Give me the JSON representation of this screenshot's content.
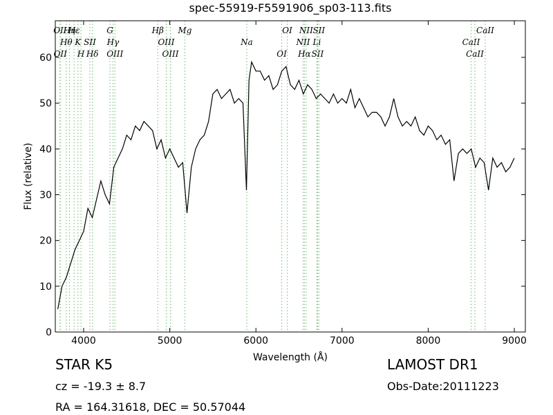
{
  "chart_data": {
    "type": "line",
    "title": "spec-55919-F5591906_sp03-113.fits",
    "x_label": "Wavelength (Å)",
    "y_label": "Flux (relative)",
    "xlim": [
      3671,
      9128
    ],
    "ylim": [
      0,
      68
    ],
    "xticks": [
      4000,
      5000,
      6000,
      7000,
      8000,
      9000
    ],
    "yticks": [
      0,
      10,
      20,
      30,
      40,
      50,
      60
    ],
    "color": "#000000",
    "line_marker_color": "#66bb66",
    "x": [
      3700,
      3750,
      3800,
      3850,
      3900,
      3950,
      4000,
      4050,
      4100,
      4150,
      4200,
      4250,
      4300,
      4350,
      4400,
      4450,
      4500,
      4550,
      4600,
      4650,
      4700,
      4750,
      4800,
      4850,
      4900,
      4950,
      5000,
      5050,
      5100,
      5150,
      5200,
      5250,
      5300,
      5350,
      5400,
      5450,
      5500,
      5550,
      5600,
      5650,
      5700,
      5750,
      5800,
      5850,
      5890,
      5920,
      5950,
      6000,
      6050,
      6100,
      6150,
      6200,
      6250,
      6300,
      6350,
      6400,
      6450,
      6500,
      6550,
      6600,
      6650,
      6700,
      6750,
      6800,
      6850,
      6900,
      6950,
      7000,
      7050,
      7100,
      7150,
      7200,
      7250,
      7300,
      7350,
      7400,
      7450,
      7500,
      7550,
      7600,
      7650,
      7700,
      7750,
      7800,
      7850,
      7900,
      7950,
      8000,
      8050,
      8100,
      8150,
      8200,
      8250,
      8300,
      8350,
      8400,
      8450,
      8500,
      8550,
      8600,
      8650,
      8700,
      8750,
      8800,
      8850,
      8900,
      8950,
      9000
    ],
    "values": [
      5,
      10,
      12,
      15,
      18,
      20,
      22,
      27,
      25,
      29,
      33,
      30,
      28,
      36,
      38,
      40,
      43,
      42,
      45,
      44,
      46,
      45,
      44,
      40,
      42,
      38,
      40,
      38,
      36,
      37,
      26,
      36,
      40,
      42,
      43,
      46,
      52,
      53,
      51,
      52,
      53,
      50,
      51,
      50,
      31,
      55,
      59,
      57,
      57,
      55,
      56,
      53,
      54,
      57,
      58,
      54,
      53,
      55,
      52,
      54,
      53,
      51,
      52,
      51,
      50,
      52,
      50,
      51,
      50,
      53,
      49,
      51,
      49,
      47,
      48,
      48,
      47,
      45,
      47,
      51,
      47,
      45,
      46,
      45,
      47,
      44,
      43,
      45,
      44,
      42,
      43,
      41,
      42,
      33,
      39,
      40,
      39,
      40,
      36,
      38,
      37,
      31,
      38,
      36,
      37,
      35,
      36,
      38
    ],
    "spectral_lines": [
      {
        "label": "OII",
        "x": 3726
      },
      {
        "label": "Hθ",
        "x": 3798
      },
      {
        "label": "OII",
        "x": 3729
      },
      {
        "label": "Hη",
        "x": 3835
      },
      {
        "label": "K",
        "x": 3934
      },
      {
        "label": "H",
        "x": 3969
      },
      {
        "label": "Hε",
        "x": 3889
      },
      {
        "label": "SII",
        "x": 4072
      },
      {
        "label": "Hδ",
        "x": 4102
      },
      {
        "label": "G",
        "x": 4305
      },
      {
        "label": "Hγ",
        "x": 4341
      },
      {
        "label": "OIII",
        "x": 4363
      },
      {
        "label": "Hβ",
        "x": 4861
      },
      {
        "label": "OIII",
        "x": 4959
      },
      {
        "label": "OIII",
        "x": 5007
      },
      {
        "label": "Mg",
        "x": 5175
      },
      {
        "label": "Na",
        "x": 5894
      },
      {
        "label": "OI",
        "x": 6300
      },
      {
        "label": "OI",
        "x": 6364
      },
      {
        "label": "NII",
        "x": 6548
      },
      {
        "label": "Hα",
        "x": 6563
      },
      {
        "label": "NII",
        "x": 6583
      },
      {
        "label": "Li",
        "x": 6708
      },
      {
        "label": "SII",
        "x": 6716
      },
      {
        "label": "SII",
        "x": 6731
      },
      {
        "label": "CaII",
        "x": 8498
      },
      {
        "label": "CaII",
        "x": 8542
      },
      {
        "label": "CaII",
        "x": 8662
      }
    ]
  },
  "footer": {
    "object": "STAR   K5",
    "redshift": "cz = -19.3 ± 8.7",
    "coords": "RA = 164.31618, DEC = 50.57044",
    "survey": "LAMOST DR1",
    "obs_date": "Obs-Date:20111223"
  }
}
